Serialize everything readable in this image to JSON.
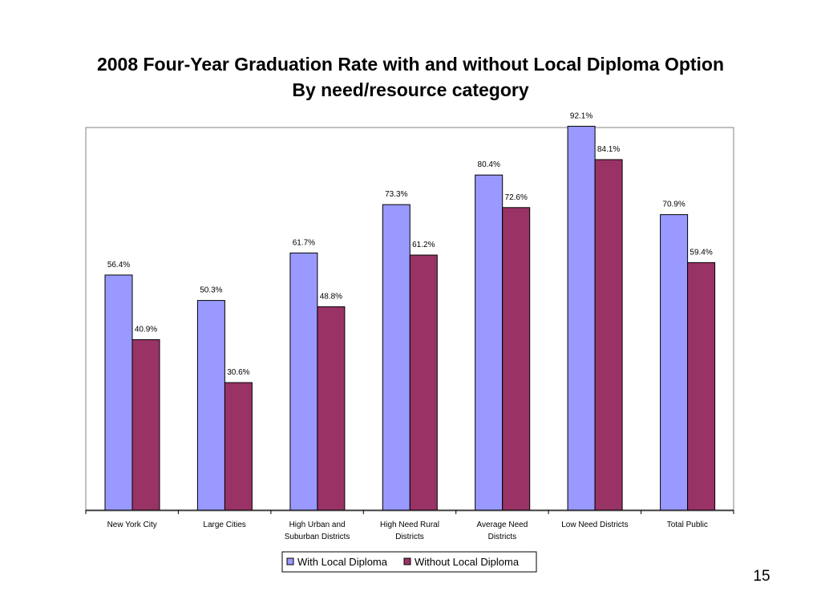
{
  "slide": {
    "title_line1": "2008 Four-Year Graduation Rate with and without Local Diploma Option",
    "title_line2": "By need/resource category",
    "page_number": "15"
  },
  "chart_data": {
    "type": "bar",
    "title": "2008 Four-Year Graduation Rate with and without Local Diploma Option",
    "subtitle": "By need/resource category",
    "categories": [
      [
        "New York City"
      ],
      [
        "Large Cities"
      ],
      [
        "High Urban and",
        "Suburban Districts"
      ],
      [
        "High Need Rural",
        "Districts"
      ],
      [
        "Average Need",
        "Districts"
      ],
      [
        "Low Need Districts"
      ],
      [
        "Total Public"
      ]
    ],
    "series": [
      {
        "name": "With Local Diploma",
        "color": "#9999FF",
        "values": [
          56.4,
          50.3,
          61.7,
          73.3,
          80.4,
          92.1,
          70.9
        ],
        "labels": [
          "56.4%",
          "50.3%",
          "61.7%",
          "73.3%",
          "80.4%",
          "92.1%",
          "70.9%"
        ]
      },
      {
        "name": "Without Local Diploma",
        "color": "#993366",
        "values": [
          40.9,
          30.6,
          48.8,
          61.2,
          72.6,
          84.1,
          59.4
        ],
        "labels": [
          "40.9%",
          "30.6%",
          "48.8%",
          "61.2%",
          "72.6%",
          "84.1%",
          "59.4%"
        ]
      }
    ],
    "ylim": [
      0,
      100
    ],
    "grid": false,
    "legend_position": "bottom"
  }
}
